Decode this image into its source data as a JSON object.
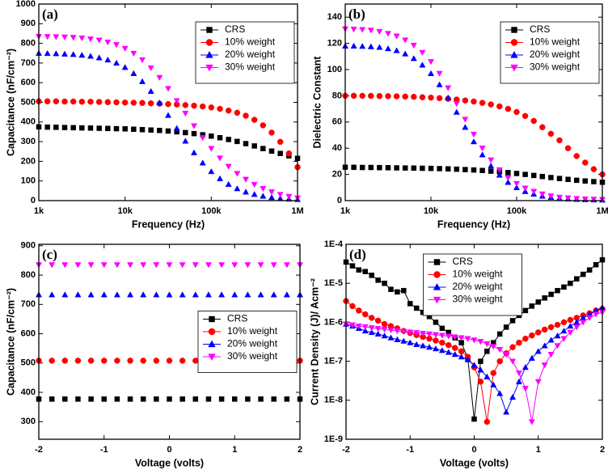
{
  "chart_data": [
    {
      "type": "scatter",
      "label": "(a)",
      "xlabel": "Frequency (Hz)",
      "ylabel": "Capacitance (nF/cm⁻²)",
      "xscale": "log",
      "xlim": [
        1000,
        1000000
      ],
      "xticks": [
        {
          "value": 1000,
          "label": "1k"
        },
        {
          "value": 10000,
          "label": "10k"
        },
        {
          "value": 100000,
          "label": "100k"
        },
        {
          "value": 1000000,
          "label": "1M"
        }
      ],
      "ylim": [
        0,
        1000
      ],
      "yticks": [
        0,
        100,
        200,
        300,
        400,
        500,
        600,
        700,
        800,
        900,
        1000
      ],
      "legend": "upper right",
      "x": [
        1000,
        1259,
        1585,
        1995,
        2512,
        3162,
        3981,
        5012,
        6310,
        7943,
        10000,
        12589,
        15849,
        19953,
        25119,
        31623,
        39811,
        50119,
        63096,
        79433,
        100000,
        125893,
        158489,
        199526,
        251189,
        316228,
        398107,
        501187,
        630957,
        794328,
        1000000
      ],
      "series": [
        {
          "name": "CRS",
          "color": "#000000",
          "marker": "square",
          "values": [
            375,
            374,
            373,
            372,
            371,
            370,
            369,
            368,
            367,
            366,
            365,
            363,
            361,
            359,
            357,
            354,
            350,
            346,
            341,
            335,
            328,
            320,
            311,
            301,
            290,
            278,
            265,
            252,
            240,
            228,
            215
          ]
        },
        {
          "name": "10% weight",
          "color": "#ff0000",
          "marker": "circle",
          "values": [
            505,
            505,
            505,
            504,
            504,
            503,
            503,
            502,
            501,
            500,
            499,
            498,
            497,
            495,
            493,
            491,
            489,
            486,
            483,
            479,
            474,
            467,
            458,
            447,
            432,
            411,
            383,
            346,
            299,
            240,
            170
          ]
        },
        {
          "name": "20% weight",
          "color": "#0000ff",
          "marker": "triangle-up",
          "values": [
            750,
            749,
            748,
            746,
            744,
            740,
            735,
            727,
            716,
            700,
            678,
            647,
            606,
            556,
            498,
            434,
            368,
            303,
            244,
            192,
            148,
            112,
            83,
            61,
            44,
            32,
            23,
            16,
            11,
            8,
            6
          ]
        },
        {
          "name": "30% weight",
          "color": "#ff00ff",
          "marker": "triangle-down",
          "values": [
            835,
            834,
            833,
            832,
            830,
            827,
            822,
            816,
            806,
            793,
            774,
            749,
            716,
            675,
            626,
            570,
            508,
            444,
            380,
            320,
            265,
            216,
            174,
            138,
            108,
            82,
            61,
            44,
            31,
            21,
            13
          ]
        }
      ]
    },
    {
      "type": "scatter",
      "label": "(b)",
      "xlabel": "Frequency (Hz)",
      "ylabel": "Dielectric Constant",
      "xscale": "log",
      "xlim": [
        1000,
        1000000
      ],
      "xticks": [
        {
          "value": 1000,
          "label": "1k"
        },
        {
          "value": 10000,
          "label": "10k"
        },
        {
          "value": 100000,
          "label": "100k"
        },
        {
          "value": 1000000,
          "label": "1M"
        }
      ],
      "ylim": [
        0,
        150
      ],
      "yticks": [
        0,
        20,
        40,
        60,
        80,
        100,
        120,
        140
      ],
      "legend": "upper right",
      "x": [
        1000,
        1259,
        1585,
        1995,
        2512,
        3162,
        3981,
        5012,
        6310,
        7943,
        10000,
        12589,
        15849,
        19953,
        25119,
        31623,
        39811,
        50119,
        63096,
        79433,
        100000,
        125893,
        158489,
        199526,
        251189,
        316228,
        398107,
        501187,
        630957,
        794328,
        1000000
      ],
      "series": [
        {
          "name": "CRS",
          "color": "#000000",
          "marker": "square",
          "values": [
            25.5,
            25.4,
            25.3,
            25.3,
            25.2,
            25.1,
            25.0,
            24.9,
            24.8,
            24.7,
            24.6,
            24.4,
            24.2,
            24.0,
            23.7,
            23.4,
            23.0,
            22.5,
            22.0,
            21.4,
            20.7,
            20.0,
            19.2,
            18.4,
            17.6,
            16.9,
            16.2,
            15.5,
            15.0,
            14.5,
            14.0
          ]
        },
        {
          "name": "10% weight",
          "color": "#ff0000",
          "marker": "circle",
          "values": [
            80,
            80,
            80,
            79.9,
            79.8,
            79.7,
            79.6,
            79.4,
            79.2,
            78.9,
            78.6,
            78.2,
            77.7,
            77.1,
            76.4,
            75.6,
            74.6,
            73.4,
            71.9,
            70.0,
            67.6,
            64.6,
            60.8,
            56,
            51,
            46,
            40,
            34,
            29,
            24,
            20
          ]
        },
        {
          "name": "20% weight",
          "color": "#0000ff",
          "marker": "triangle-up",
          "values": [
            118,
            118,
            117.8,
            117.5,
            117,
            116,
            114.5,
            112,
            108.5,
            103.5,
            97,
            88.5,
            78.5,
            67.5,
            56,
            45,
            35,
            26.5,
            19.5,
            14,
            10,
            7,
            5,
            3.5,
            2.5,
            1.8,
            1.3,
            1,
            0.8,
            0.6,
            0.5
          ]
        },
        {
          "name": "30% weight",
          "color": "#ff00ff",
          "marker": "triangle-down",
          "values": [
            131,
            130.8,
            130.5,
            130,
            129,
            127.5,
            125.5,
            122.5,
            118.5,
            113,
            106,
            97,
            86,
            74,
            62,
            50.5,
            40,
            31,
            23.5,
            17.5,
            13,
            9.5,
            7,
            5,
            3.5,
            2.5,
            2,
            1.5,
            1.2,
            1,
            0.8
          ]
        }
      ]
    },
    {
      "type": "scatter",
      "label": "(c)",
      "xlabel": "Voltage (volts)",
      "ylabel": "Capacitance (nF/cm⁻²)",
      "xlim": [
        -2,
        2
      ],
      "xticks": [
        -2,
        -1,
        0,
        1,
        2
      ],
      "ylim": [
        240,
        905
      ],
      "yticks": [
        300,
        400,
        500,
        600,
        700,
        800,
        900
      ],
      "legend": "center right",
      "x": [
        -2,
        -1.8,
        -1.6,
        -1.4,
        -1.2,
        -1,
        -0.8,
        -0.6,
        -0.4,
        -0.2,
        0,
        0.2,
        0.4,
        0.6,
        0.8,
        1,
        1.2,
        1.4,
        1.6,
        1.8,
        2
      ],
      "series": [
        {
          "name": "CRS",
          "color": "#000000",
          "marker": "square",
          "values": [
            377,
            377,
            377,
            377,
            377,
            377,
            377,
            377,
            377,
            377,
            377,
            377,
            377,
            377,
            377,
            377,
            377,
            377,
            377,
            377,
            377
          ]
        },
        {
          "name": "10% weight",
          "color": "#ff0000",
          "marker": "circle",
          "values": [
            508,
            508,
            508,
            508,
            508,
            508,
            508,
            508,
            508,
            508,
            508,
            508,
            508,
            508,
            508,
            508,
            508,
            508,
            508,
            508,
            508
          ]
        },
        {
          "name": "20% weight",
          "color": "#0000ff",
          "marker": "triangle-up",
          "values": [
            733,
            733,
            733,
            733,
            733,
            733,
            733,
            733,
            733,
            733,
            733,
            733,
            733,
            733,
            733,
            733,
            733,
            733,
            733,
            733,
            733
          ]
        },
        {
          "name": "30% weight",
          "color": "#ff00ff",
          "marker": "triangle-down",
          "values": [
            835,
            835,
            835,
            835,
            835,
            835,
            835,
            835,
            835,
            835,
            835,
            835,
            835,
            835,
            835,
            835,
            835,
            835,
            835,
            835,
            835
          ]
        }
      ]
    },
    {
      "type": "line",
      "label": "(d)",
      "xlabel": "Voltage (volts)",
      "ylabel": "Current Density (J)/ Acm⁻²",
      "xlim": [
        -2,
        2
      ],
      "xticks": [
        -2,
        -1,
        0,
        1,
        2
      ],
      "yscale": "log",
      "ylim": [
        1e-09,
        0.0001
      ],
      "yticks": [
        {
          "value": 1e-09,
          "label": "1E-9"
        },
        {
          "value": 1e-08,
          "label": "1E-8"
        },
        {
          "value": 1e-07,
          "label": "1E-7"
        },
        {
          "value": 1e-06,
          "label": "1E-6"
        },
        {
          "value": 1e-05,
          "label": "1E-5"
        },
        {
          "value": 0.0001,
          "label": "1E-4"
        }
      ],
      "legend": "upper center",
      "x": [
        -2,
        -1.9,
        -1.8,
        -1.7,
        -1.6,
        -1.5,
        -1.4,
        -1.3,
        -1.2,
        -1.1,
        -1,
        -0.9,
        -0.8,
        -0.7,
        -0.6,
        -0.5,
        -0.4,
        -0.3,
        -0.2,
        -0.1,
        0,
        0.1,
        0.2,
        0.3,
        0.4,
        0.5,
        0.6,
        0.7,
        0.8,
        0.9,
        1,
        1.1,
        1.2,
        1.3,
        1.4,
        1.5,
        1.6,
        1.7,
        1.8,
        1.9,
        2
      ],
      "series": [
        {
          "name": "CRS",
          "color": "#000000",
          "marker": "square",
          "values": [
            3.5e-05,
            2.8e-05,
            2.2e-05,
            2e-05,
            1.6e-05,
            1.2e-05,
            1e-05,
            7e-06,
            6e-06,
            6.5e-06,
            3e-06,
            2.3e-06,
            1.8e-06,
            1.4e-06,
            1e-06,
            7e-07,
            5.5e-07,
            4e-07,
            3e-07,
            1.2e-07,
            3.3e-09,
            1e-07,
            1.8e-07,
            3e-07,
            5e-07,
            7.5e-07,
            1.1e-06,
            1.5e-06,
            2e-06,
            2.6e-06,
            3.3e-06,
            4.2e-06,
            5.2e-06,
            6.5e-06,
            8e-06,
            1e-05,
            1.3e-05,
            1.7e-05,
            2.2e-05,
            3e-05,
            4e-05
          ]
        },
        {
          "name": "10% weight",
          "color": "#ff0000",
          "marker": "circle",
          "values": [
            3.5e-06,
            2.6e-06,
            2e-06,
            1.6e-06,
            1.3e-06,
            1.1e-06,
            9e-07,
            8e-07,
            7e-07,
            6e-07,
            5.3e-07,
            4.7e-07,
            4.2e-07,
            3.8e-07,
            3.4e-07,
            3e-07,
            2.6e-07,
            2.2e-07,
            1.8e-07,
            1.3e-07,
            7e-08,
            3e-08,
            2.8e-09,
            5e-08,
            1e-07,
            1.6e-07,
            2.3e-07,
            3e-07,
            3.8e-07,
            4.6e-07,
            5.5e-07,
            6.5e-07,
            7.5e-07,
            8.6e-07,
            1e-06,
            1.15e-06,
            1.3e-06,
            1.5e-06,
            1.7e-06,
            2e-06,
            2.2e-06
          ]
        },
        {
          "name": "20% weight",
          "color": "#0000ff",
          "marker": "triangle-up",
          "values": [
            9e-07,
            8e-07,
            7e-07,
            6e-07,
            5.5e-07,
            5e-07,
            4.5e-07,
            4e-07,
            3.6e-07,
            3.3e-07,
            3e-07,
            2.7e-07,
            2.5e-07,
            2.3e-07,
            2.1e-07,
            1.9e-07,
            1.7e-07,
            1.5e-07,
            1.3e-07,
            1.1e-07,
            8e-08,
            6e-08,
            4e-08,
            2.5e-08,
            1.5e-08,
            5e-09,
            1.2e-08,
            3e-08,
            7e-08,
            1.2e-07,
            1.8e-07,
            2.5e-07,
            3.5e-07,
            4.5e-07,
            6e-07,
            8e-07,
            1e-06,
            1.3e-06,
            1.6e-06,
            2e-06,
            2.4e-06
          ]
        },
        {
          "name": "30% weight",
          "color": "#ff00ff",
          "marker": "triangle-down",
          "values": [
            9e-07,
            8.5e-07,
            8e-07,
            7.6e-07,
            7.2e-07,
            6.9e-07,
            6.6e-07,
            6.3e-07,
            6e-07,
            5.8e-07,
            5.6e-07,
            5.4e-07,
            5.2e-07,
            5e-07,
            4.8e-07,
            4.6e-07,
            4.4e-07,
            4.2e-07,
            4e-07,
            3.8e-07,
            3.5e-07,
            3.2e-07,
            2.8e-07,
            2.4e-07,
            2e-07,
            1.5e-07,
            1e-07,
            5e-08,
            2e-08,
            2.8e-09,
            3e-08,
            8e-08,
            1.5e-07,
            2.5e-07,
            3.8e-07,
            5.5e-07,
            7.5e-07,
            1e-06,
            1.3e-06,
            1.6e-06,
            1.8e-06
          ]
        }
      ]
    }
  ]
}
